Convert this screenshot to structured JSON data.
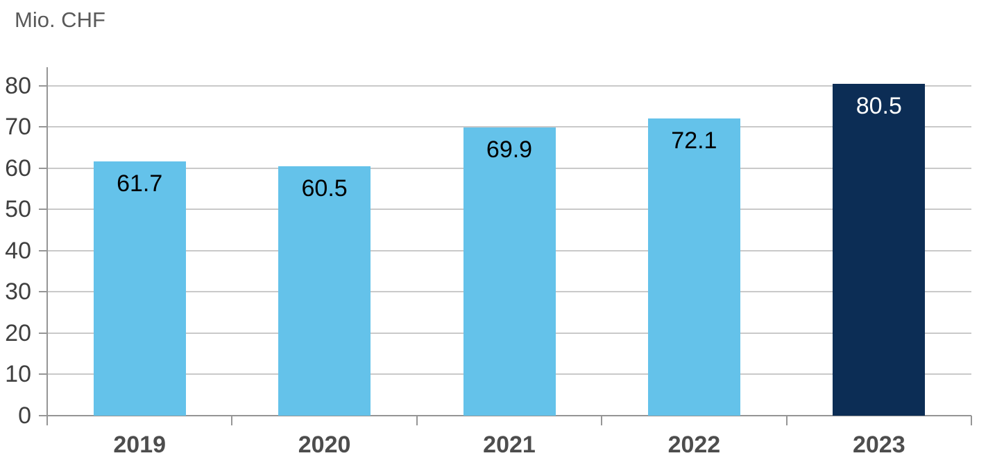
{
  "chart_data": {
    "type": "bar",
    "title": "Mio. CHF",
    "categories": [
      "2019",
      "2020",
      "2021",
      "2022",
      "2023"
    ],
    "values": [
      61.7,
      60.5,
      69.9,
      72.1,
      80.5
    ],
    "value_labels": [
      "61.7",
      "60.5",
      "69.9",
      "72.1",
      "80.5"
    ],
    "highlight_index": 4,
    "xlabel": "",
    "ylabel": "Mio. CHF",
    "ylim": [
      0,
      84.5
    ],
    "yticks": [
      0,
      10,
      20,
      30,
      40,
      50,
      60,
      70,
      80
    ],
    "grid": "horizontal",
    "legend": "none",
    "colors": {
      "bar": "#64C2EA",
      "bar_highlight": "#0C2D55",
      "label_on_bar": "#000000",
      "label_on_highlight": "#FFFFFF",
      "gridline": "#C9C9C9",
      "axis_line": "#969696",
      "tick_label": "#3F3F3F",
      "category_label": "#4D4D4D",
      "title": "#595959"
    }
  }
}
